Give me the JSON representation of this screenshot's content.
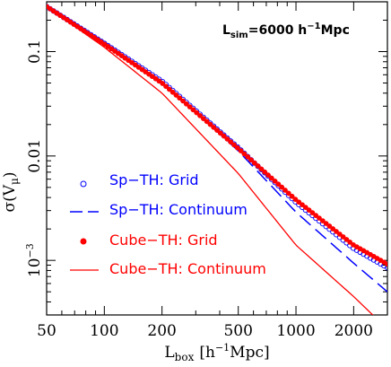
{
  "chart_data": {
    "type": "line",
    "xlabel": {
      "main": "L",
      "sub": "box",
      "unit": "[h",
      "sup": "−1",
      "unit_tail": "Mpc]"
    },
    "ylabel": {
      "main": "σ(V",
      "sub": "μ",
      "tail": ")"
    },
    "annotation": {
      "main": "L",
      "sub": "sim",
      "eq": "=6000 h",
      "sup": "−1",
      "tail": "Mpc"
    },
    "x_scale": "log",
    "y_scale": "log",
    "xlim": [
      50,
      3000
    ],
    "ylim": [
      0.0003,
      0.3
    ],
    "x_ticks": [
      {
        "value": 50,
        "label": "50"
      },
      {
        "value": 100,
        "label": "100"
      },
      {
        "value": 200,
        "label": "200"
      },
      {
        "value": 500,
        "label": "500"
      },
      {
        "value": 1000,
        "label": "1000"
      },
      {
        "value": 2000,
        "label": "2000"
      }
    ],
    "y_ticks": [
      {
        "value": 0.1,
        "label": "0.1"
      },
      {
        "value": 0.01,
        "label": "0.01"
      }
    ],
    "y_tick_exp": {
      "value": 0.001,
      "base": "10",
      "exp": "−3"
    },
    "grid": false,
    "legend_position": "left",
    "series": [
      {
        "name": "Sp−TH: Grid",
        "style": "open-circle",
        "color": "#0000ff",
        "x": [
          50,
          100,
          200,
          500,
          1000,
          2000,
          3000
        ],
        "y": [
          0.27,
          0.12,
          0.052,
          0.012,
          0.0036,
          0.0013,
          0.00085
        ]
      },
      {
        "name": "Sp−TH: Continuum",
        "style": "dashed",
        "color": "#0000ff",
        "x": [
          50,
          100,
          200,
          500,
          1000,
          2000,
          3000
        ],
        "y": [
          0.27,
          0.12,
          0.052,
          0.0112,
          0.0029,
          0.00094,
          0.0005
        ]
      },
      {
        "name": "Cube−TH: Grid",
        "style": "filled-circle",
        "color": "#ff0000",
        "x": [
          50,
          100,
          200,
          500,
          1000,
          2000,
          3000
        ],
        "y": [
          0.27,
          0.118,
          0.05,
          0.0118,
          0.0038,
          0.0014,
          0.00092
        ]
      },
      {
        "name": "Cube−TH: Continuum",
        "style": "solid",
        "color": "#ff0000",
        "x": [
          50,
          100,
          200,
          500,
          1000,
          2000,
          3000
        ],
        "y": [
          0.27,
          0.11,
          0.04,
          0.0068,
          0.0014,
          0.00045,
          0.00022
        ]
      }
    ]
  }
}
